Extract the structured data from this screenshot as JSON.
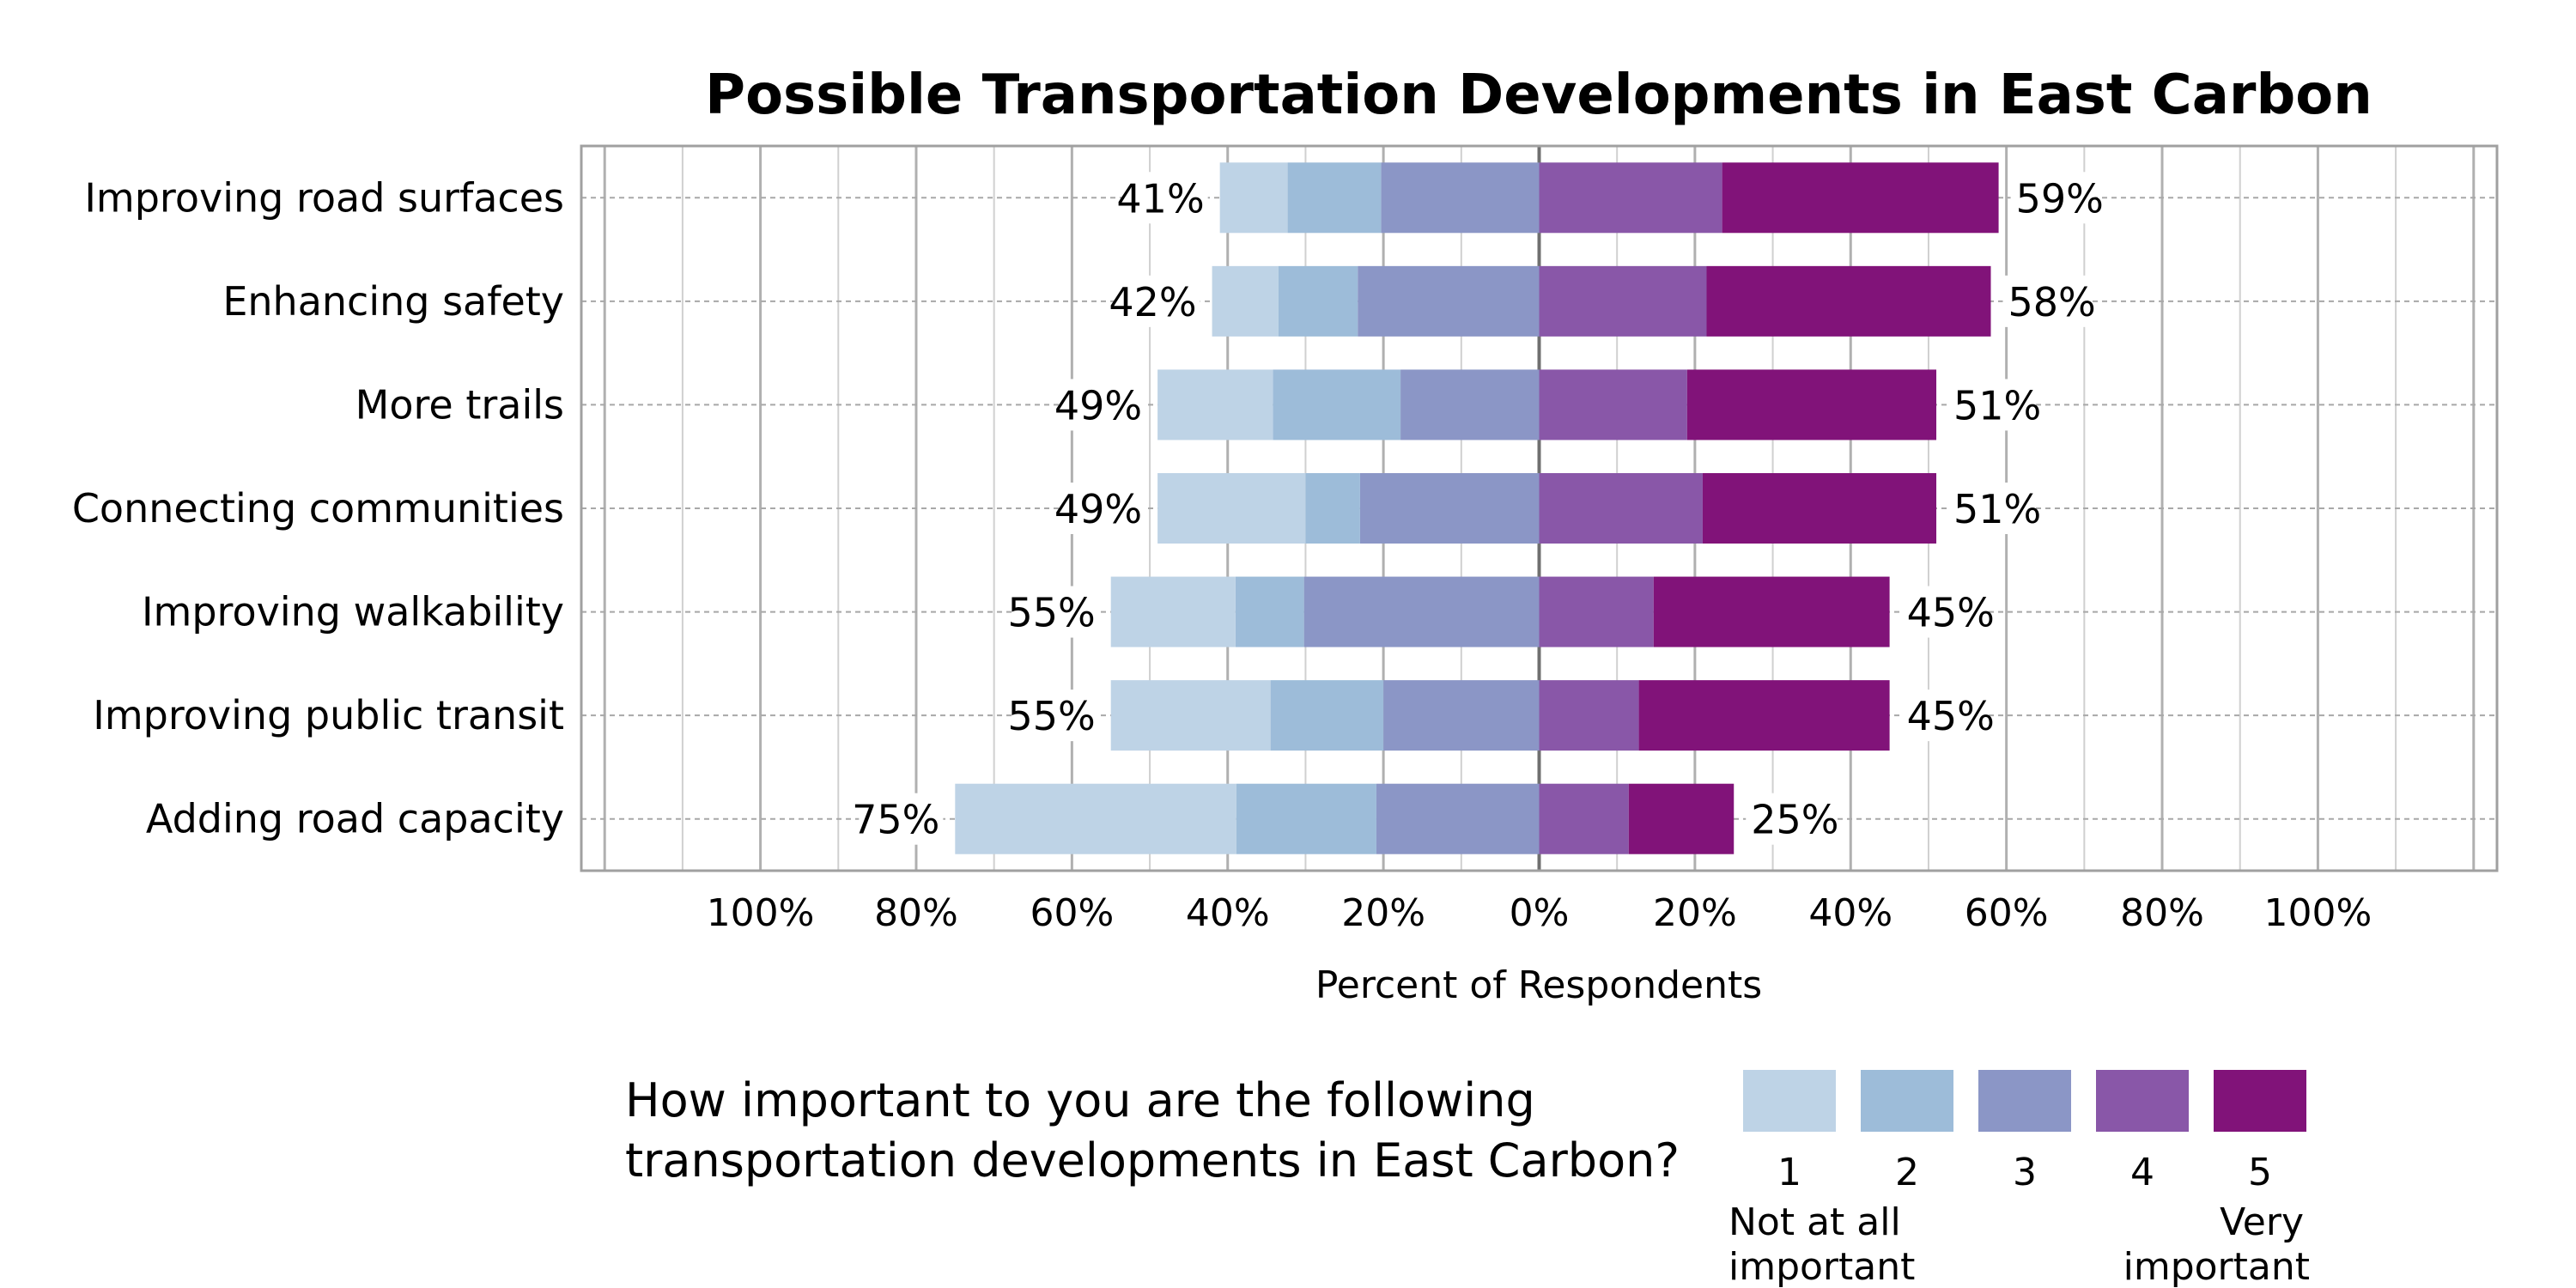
{
  "chart_data": {
    "type": "bar",
    "subtype": "diverging-stacked-horizontal",
    "title": "Possible Transportation Developments in East Carbon",
    "xlabel": "Percent of Respondents",
    "xlim": [
      -123,
      123
    ],
    "x_ticks": [
      -100,
      -80,
      -60,
      -40,
      -20,
      0,
      20,
      40,
      60,
      80,
      100
    ],
    "x_tick_labels": [
      "100%",
      "80%",
      "60%",
      "40%",
      "20%",
      "0%",
      "20%",
      "40%",
      "60%",
      "80%",
      "100%"
    ],
    "grid": true,
    "categories": [
      "Improving road surfaces",
      "Enhancing safety",
      "More trails",
      "Connecting communities",
      "Improving walkability",
      "Improving public transit",
      "Adding road capacity"
    ],
    "series": [
      {
        "name": "1",
        "side": "negative",
        "color": "#bed3e6",
        "values": [
          8.7,
          8.5,
          14.8,
          19.0,
          16.0,
          20.5,
          36.1
        ]
      },
      {
        "name": "2",
        "side": "negative",
        "color": "#9dbcd9",
        "values": [
          12.0,
          10.2,
          16.4,
          7.0,
          8.8,
          14.5,
          18.0
        ]
      },
      {
        "name": "3",
        "side": "negative",
        "color": "#8b96c6",
        "values": [
          20.3,
          23.3,
          17.8,
          23.0,
          30.2,
          20.0,
          20.9
        ]
      },
      {
        "name": "4",
        "side": "positive",
        "color": "#8957a8",
        "values": [
          23.5,
          21.5,
          19.0,
          21.0,
          14.7,
          12.8,
          11.5
        ]
      },
      {
        "name": "5",
        "side": "positive",
        "color": "#811379",
        "values": [
          35.5,
          36.5,
          32.0,
          30.0,
          30.3,
          32.2,
          13.5
        ]
      }
    ],
    "neg_labels": [
      "41%",
      "42%",
      "49%",
      "49%",
      "55%",
      "55%",
      "75%"
    ],
    "pos_labels": [
      "59%",
      "58%",
      "51%",
      "51%",
      "45%",
      "45%",
      "25%"
    ],
    "legend": {
      "question": [
        "How important to you are the following",
        "transportation developments in East Carbon?"
      ],
      "low_anchor": [
        "Not at all",
        "important"
      ],
      "high_anchor": [
        "Very",
        "important"
      ],
      "placement": "bottom"
    }
  }
}
